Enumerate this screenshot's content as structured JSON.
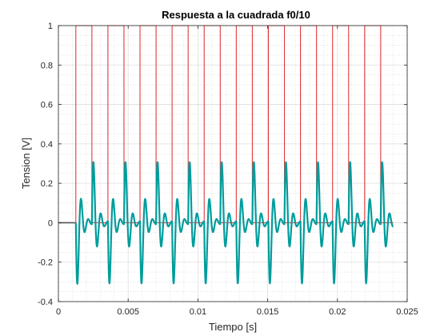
{
  "chart_data": {
    "type": "line",
    "title": "Respuesta a la cuadrada f0/10",
    "xlabel": "Tiempo [s]",
    "ylabel": "Tension [V]",
    "xlim": [
      0,
      0.025
    ],
    "ylim": [
      -0.4,
      1
    ],
    "xticks": [
      0,
      0.005,
      0.01,
      0.015,
      0.02,
      0.025
    ],
    "xtick_labels": [
      "0",
      "0.005",
      "0.01",
      "0.015",
      "0.02",
      "0.025"
    ],
    "yticks": [
      -0.4,
      -0.2,
      0,
      0.2,
      0.4,
      0.6,
      0.8,
      1
    ],
    "ytick_labels": [
      "-0.4",
      "-0.2",
      "0",
      "0.2",
      "0.4",
      "0.6",
      "0.8",
      "1"
    ],
    "grid": true,
    "minor_grid": true,
    "series": [
      {
        "color": "#e03b3b",
        "kind": "square_wave",
        "period": 0.0023,
        "first_rise": 0.00125,
        "pulse_width": 0.00115,
        "low": 0,
        "high": 1,
        "end": 0.024
      },
      {
        "color": "#009c9c",
        "kind": "response",
        "peak_positive": 0.31,
        "peak_negative": -0.31
      },
      {
        "color": "#555555",
        "kind": "baseline",
        "value": 0,
        "x_range": [
          0,
          0.0012
        ]
      }
    ]
  }
}
